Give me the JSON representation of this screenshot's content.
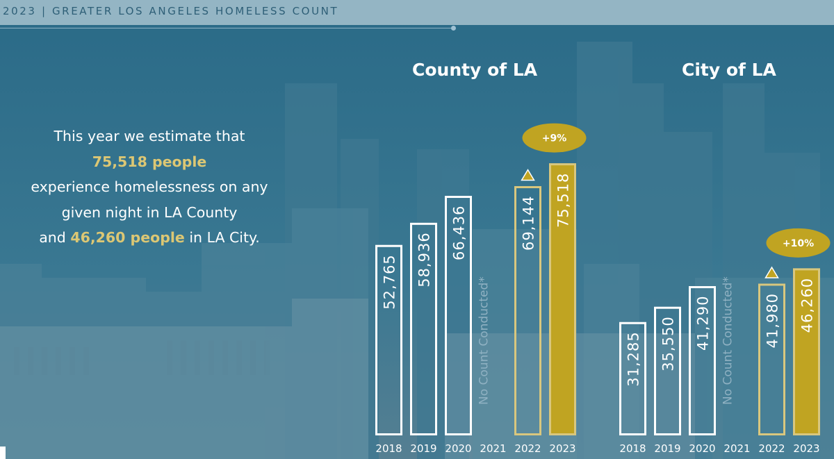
{
  "header": {
    "title": "2023 | GREATER LOS ANGELES HOMELESS COUNT"
  },
  "intro": {
    "line1": "This year we estimate that",
    "highlight_county": "75,518 people",
    "line2": "experience homelessness on any",
    "line3": "given night in LA County",
    "and_word": "and",
    "highlight_city": "46,260 people",
    "line4_end": "in LA City."
  },
  "colors": {
    "background": "#2d6a85",
    "gold": "#c0a422",
    "gold_outline": "#d9c77e",
    "white": "#ffffff"
  },
  "chart_data": [
    {
      "type": "bar",
      "title": "County of LA",
      "categories": [
        "2018",
        "2019",
        "2020",
        "2021",
        "2022",
        "2023"
      ],
      "values": [
        52765,
        58936,
        66436,
        null,
        69144,
        75518
      ],
      "value_labels": [
        "52,765",
        "58,936",
        "66,436",
        "",
        "69,144",
        "75,518"
      ],
      "no_count_label": "No Count Conducted*",
      "change_label": "+9%",
      "xlabel": "",
      "ylabel": "",
      "ylim": [
        0,
        80000
      ]
    },
    {
      "type": "bar",
      "title": "City of LA",
      "categories": [
        "2018",
        "2019",
        "2020",
        "2021",
        "2022",
        "2023"
      ],
      "values": [
        31285,
        35550,
        41290,
        null,
        41980,
        46260
      ],
      "value_labels": [
        "31,285",
        "35,550",
        "41,290",
        "",
        "41,980",
        "46,260"
      ],
      "no_count_label": "No Count Conducted*",
      "change_label": "+10%",
      "xlabel": "",
      "ylabel": "",
      "ylim": [
        0,
        80000
      ]
    }
  ]
}
